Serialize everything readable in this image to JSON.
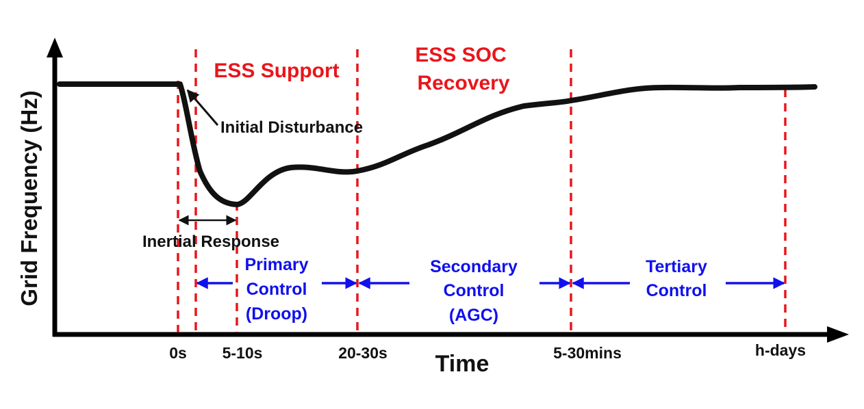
{
  "axes": {
    "ylabel": "Grid Frequency (Hz)",
    "xlabel": "Time",
    "ticks": [
      "0s",
      "5-10s",
      "20-30s",
      "5-30mins",
      "h-days"
    ]
  },
  "phases": {
    "ess_support": "ESS Support",
    "ess_soc_line1": "ESS SOC",
    "ess_soc_line2": "Recovery"
  },
  "annotations": {
    "initial_disturbance": "Initial Disturbance",
    "inertial_response": "Inertial Response"
  },
  "controls": {
    "primary": [
      "Primary",
      "Control",
      "(Droop)"
    ],
    "secondary": [
      "Secondary",
      "Control",
      "(AGC)"
    ],
    "tertiary": [
      "Tertiary",
      "Control"
    ]
  },
  "colors": {
    "curve": "#111111",
    "phase_lines": "#e8161b",
    "controls": "#1010ee"
  }
}
